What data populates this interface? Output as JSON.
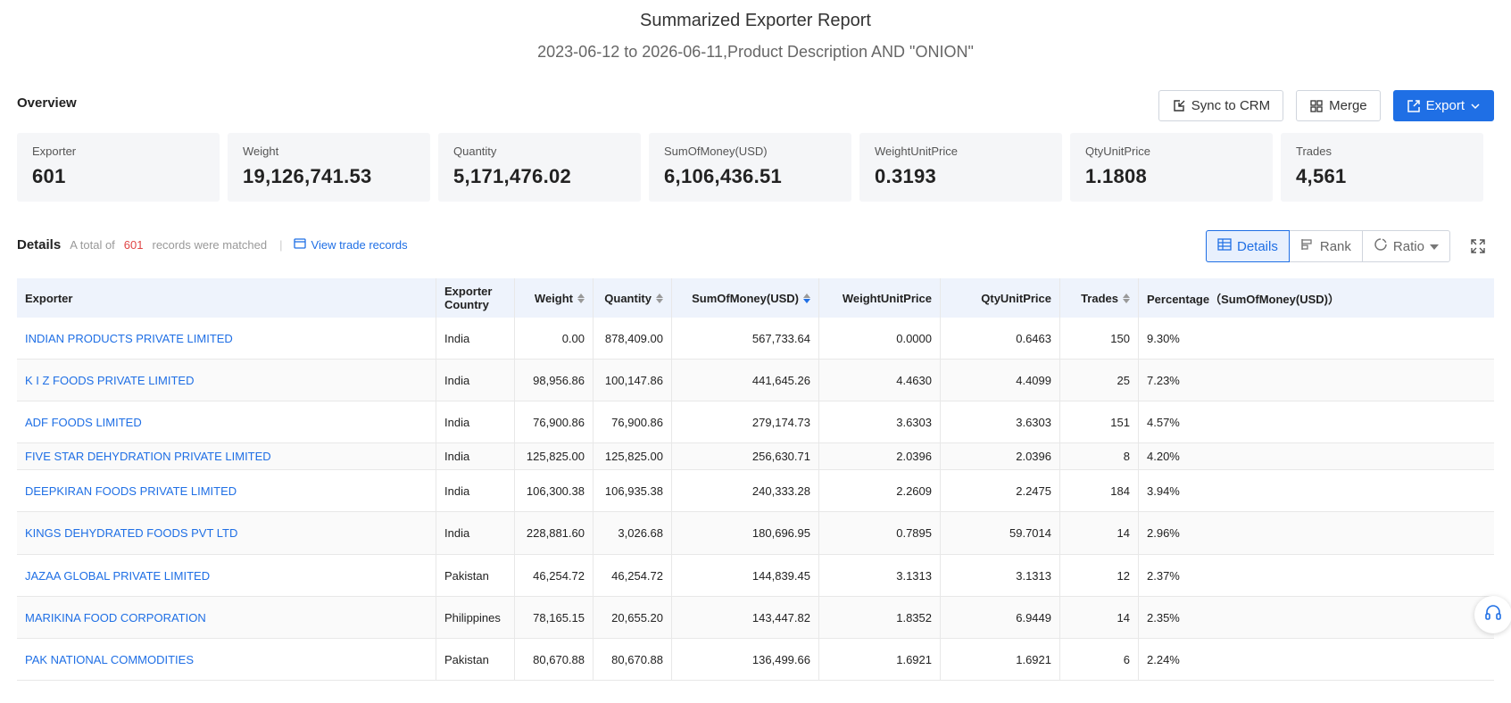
{
  "report": {
    "title": "Summarized Exporter Report",
    "subtitle": "2023-06-12 to 2026-06-11,Product Description AND \"ONION\""
  },
  "overview": {
    "label": "Overview",
    "sync_label": "Sync to CRM",
    "merge_label": "Merge",
    "export_label": "Export",
    "stats": [
      {
        "label": "Exporter",
        "value": "601"
      },
      {
        "label": "Weight",
        "value": "19,126,741.53"
      },
      {
        "label": "Quantity",
        "value": "5,171,476.02"
      },
      {
        "label": "SumOfMoney(USD)",
        "value": "6,106,436.51"
      },
      {
        "label": "WeightUnitPrice",
        "value": "0.3193"
      },
      {
        "label": "QtyUnitPrice",
        "value": "1.1808"
      },
      {
        "label": "Trades",
        "value": "4,561"
      }
    ]
  },
  "details": {
    "title": "Details",
    "total_prefix": "A total of",
    "total_count": "601",
    "total_suffix": "records were matched",
    "separator": "|",
    "view_trade_records": "View trade records",
    "views": {
      "details": "Details",
      "rank": "Rank",
      "ratio": "Ratio"
    }
  },
  "table": {
    "headers": {
      "exporter": "Exporter",
      "country": "Exporter Country",
      "weight": "Weight",
      "quantity": "Quantity",
      "sum": "SumOfMoney(USD)",
      "wup": "WeightUnitPrice",
      "qup": "QtyUnitPrice",
      "trades": "Trades",
      "pct": "Percentage（SumOfMoney(USD)）"
    },
    "rows": [
      {
        "exporter": "INDIAN PRODUCTS PRIVATE LIMITED",
        "country": "India",
        "weight": "0.00",
        "quantity": "878,409.00",
        "sum": "567,733.64",
        "wup": "0.0000",
        "qup": "0.6463",
        "trades": "150",
        "pct": "9.30%"
      },
      {
        "exporter": "K I Z FOODS PRIVATE LIMITED",
        "country": "India",
        "weight": "98,956.86",
        "quantity": "100,147.86",
        "sum": "441,645.26",
        "wup": "4.4630",
        "qup": "4.4099",
        "trades": "25",
        "pct": "7.23%"
      },
      {
        "exporter": "ADF FOODS LIMITED",
        "country": "India",
        "weight": "76,900.86",
        "quantity": "76,900.86",
        "sum": "279,174.73",
        "wup": "3.6303",
        "qup": "3.6303",
        "trades": "151",
        "pct": "4.57%"
      },
      {
        "exporter": "FIVE STAR DEHYDRATION PRIVATE LIMITED",
        "country": "India",
        "weight": "125,825.00",
        "quantity": "125,825.00",
        "sum": "256,630.71",
        "wup": "2.0396",
        "qup": "2.0396",
        "trades": "8",
        "pct": "4.20%"
      },
      {
        "exporter": "DEEPKIRAN FOODS PRIVATE LIMITED",
        "country": "India",
        "weight": "106,300.38",
        "quantity": "106,935.38",
        "sum": "240,333.28",
        "wup": "2.2609",
        "qup": "2.2475",
        "trades": "184",
        "pct": "3.94%"
      },
      {
        "exporter": "KINGS DEHYDRATED FOODS PVT LTD",
        "country": "India",
        "weight": "228,881.60",
        "quantity": "3,026.68",
        "sum": "180,696.95",
        "wup": "0.7895",
        "qup": "59.7014",
        "trades": "14",
        "pct": "2.96%"
      },
      {
        "exporter": "JAZAA GLOBAL PRIVATE LIMITED",
        "country": "Pakistan",
        "weight": "46,254.72",
        "quantity": "46,254.72",
        "sum": "144,839.45",
        "wup": "3.1313",
        "qup": "3.1313",
        "trades": "12",
        "pct": "2.37%"
      },
      {
        "exporter": "MARIKINA FOOD CORPORATION",
        "country": "Philippines",
        "weight": "78,165.15",
        "quantity": "20,655.20",
        "sum": "143,447.82",
        "wup": "1.8352",
        "qup": "6.9449",
        "trades": "14",
        "pct": "2.35%"
      },
      {
        "exporter": "PAK NATIONAL COMMODITIES",
        "country": "Pakistan",
        "weight": "80,670.88",
        "quantity": "80,670.88",
        "sum": "136,499.66",
        "wup": "1.6921",
        "qup": "1.6921",
        "trades": "6",
        "pct": "2.24%"
      }
    ]
  }
}
